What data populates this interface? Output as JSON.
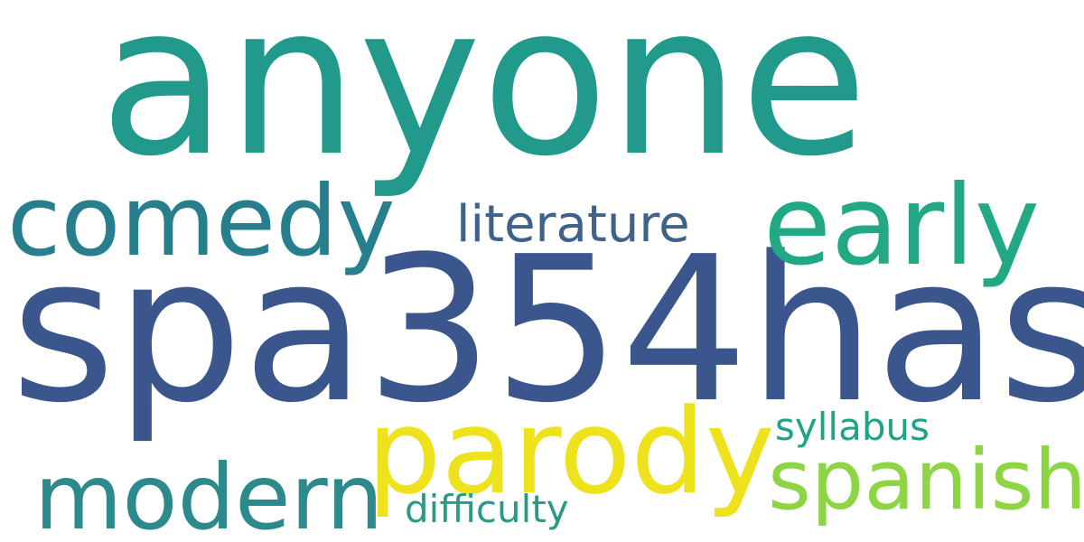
{
  "words": [
    {
      "text": "anyone",
      "color": "#21998b"
    },
    {
      "text": "spa354has",
      "color": "#3b558d"
    },
    {
      "text": "parody",
      "color": "#ede21b"
    },
    {
      "text": "early",
      "color": "#22a884"
    },
    {
      "text": "comedy",
      "color": "#277f8e"
    },
    {
      "text": "spanish",
      "color": "#8dd544"
    },
    {
      "text": "modern",
      "color": "#2c8a8c"
    },
    {
      "text": "literature",
      "color": "#3e6288"
    },
    {
      "text": "syllabus",
      "color": "#1fa287"
    },
    {
      "text": "difficulty",
      "color": "#2a9a86"
    }
  ]
}
